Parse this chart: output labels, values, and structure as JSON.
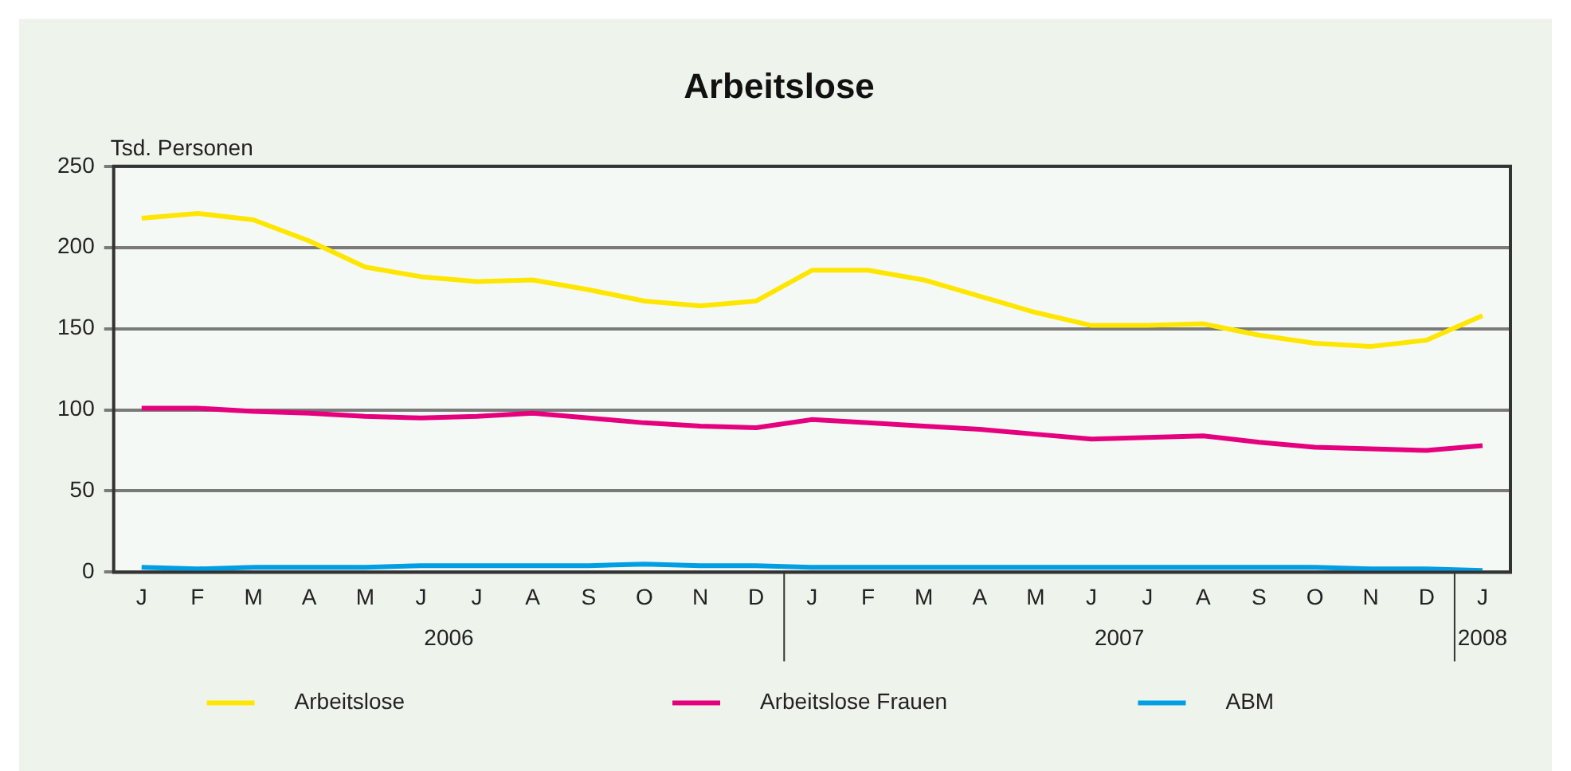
{
  "chart_data": {
    "type": "line",
    "title": "Arbeitslose",
    "ylabel": "Tsd. Personen",
    "categories": [
      "J",
      "F",
      "M",
      "A",
      "M",
      "J",
      "J",
      "A",
      "S",
      "O",
      "N",
      "D",
      "J",
      "F",
      "M",
      "A",
      "M",
      "J",
      "J",
      "A",
      "S",
      "O",
      "N",
      "D",
      "J"
    ],
    "annotations": [
      "2006",
      "2007",
      "2008"
    ],
    "series": [
      {
        "name": "Arbeitslose",
        "color": "#ffe600",
        "values": [
          218,
          221,
          217,
          204,
          188,
          182,
          179,
          180,
          174,
          167,
          164,
          167,
          186,
          186,
          180,
          170,
          160,
          152,
          152,
          153,
          146,
          141,
          139,
          143,
          158
        ]
      },
      {
        "name": "Arbeitslose Frauen",
        "color": "#e5007d",
        "values": [
          101,
          101,
          99,
          98,
          96,
          95,
          96,
          98,
          95,
          92,
          90,
          89,
          94,
          92,
          90,
          88,
          85,
          82,
          83,
          84,
          80,
          77,
          76,
          75,
          78
        ]
      },
      {
        "name": "ABM",
        "color": "#009fe3",
        "values": [
          3,
          2,
          3,
          3,
          3,
          4,
          4,
          4,
          4,
          5,
          4,
          4,
          3,
          3,
          3,
          3,
          3,
          3,
          3,
          3,
          3,
          3,
          2,
          2,
          1
        ]
      }
    ],
    "ylim": [
      0,
      250
    ],
    "yticks": [
      0,
      50,
      100,
      150,
      200,
      250
    ],
    "grid": "y",
    "legend": "bottom",
    "marker": "none",
    "line_style": "solid"
  }
}
